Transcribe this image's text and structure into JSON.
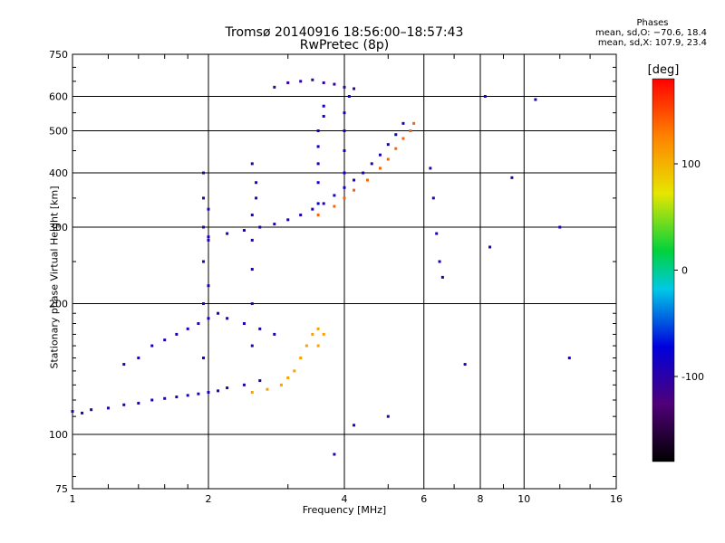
{
  "chart_data": {
    "type": "scatter",
    "title": "Tromsø 20140916 18:56:00–18:57:43",
    "subtitle": "RwPretec (8p)",
    "xlabel": "Frequency [MHz]",
    "ylabel": "Stationary phase Virtual Height [km]",
    "x_scale": "log",
    "y_scale": "log",
    "xlim": [
      1,
      16
    ],
    "ylim": [
      75,
      750
    ],
    "x_ticks": [
      1,
      2,
      4,
      6,
      8,
      10,
      16
    ],
    "y_ticks": [
      75,
      100,
      200,
      300,
      400,
      500,
      600,
      750
    ],
    "grid": true,
    "phase_info": {
      "title": "Phases",
      "line_o": "mean, sd,O: −70.6, 18.4",
      "line_x": "mean, sd,X: 107.9, 23.4"
    },
    "colorbar": {
      "label": "[deg]",
      "range": [
        -180,
        180
      ],
      "ticks": [
        100,
        0,
        -100
      ]
    },
    "series": [
      {
        "name": "",
        "description": "low F-layer trace",
        "points": [
          [
            1.0,
            113
          ],
          [
            1.05,
            112
          ],
          [
            1.1,
            114
          ],
          [
            1.2,
            115
          ],
          [
            1.3,
            117
          ],
          [
            1.4,
            118
          ],
          [
            1.5,
            120
          ],
          [
            1.6,
            121
          ],
          [
            1.7,
            122
          ],
          [
            1.8,
            123
          ],
          [
            1.9,
            124
          ],
          [
            2.0,
            125
          ],
          [
            2.1,
            126
          ],
          [
            2.2,
            128
          ],
          [
            2.4,
            130
          ],
          [
            2.6,
            133
          ]
        ],
        "phase": -95
      },
      {
        "name": "",
        "description": "lower band echoes",
        "points": [
          [
            1.3,
            145
          ],
          [
            1.4,
            150
          ],
          [
            1.5,
            160
          ],
          [
            1.6,
            165
          ],
          [
            1.7,
            170
          ],
          [
            1.8,
            175
          ],
          [
            1.9,
            180
          ],
          [
            2.0,
            185
          ],
          [
            2.1,
            190
          ],
          [
            2.2,
            185
          ],
          [
            2.4,
            180
          ],
          [
            2.6,
            175
          ],
          [
            2.8,
            170
          ]
        ],
        "phase": -90
      },
      {
        "name": "",
        "description": "vertical streak near 2 MHz",
        "points": [
          [
            1.95,
            150
          ],
          [
            1.95,
            200
          ],
          [
            1.95,
            250
          ],
          [
            1.95,
            300
          ],
          [
            1.95,
            350
          ],
          [
            1.95,
            400
          ],
          [
            2.0,
            220
          ],
          [
            2.0,
            280
          ],
          [
            2.0,
            330
          ]
        ],
        "phase": -100
      },
      {
        "name": "",
        "description": "vertical streak near 2.5 MHz",
        "points": [
          [
            2.5,
            160
          ],
          [
            2.5,
            200
          ],
          [
            2.5,
            240
          ],
          [
            2.5,
            280
          ],
          [
            2.5,
            320
          ],
          [
            2.55,
            350
          ],
          [
            2.55,
            380
          ],
          [
            2.5,
            420
          ]
        ],
        "phase": -95
      },
      {
        "name": "",
        "description": "F2 trace rising",
        "points": [
          [
            2.0,
            285
          ],
          [
            2.2,
            290
          ],
          [
            2.4,
            295
          ],
          [
            2.6,
            300
          ],
          [
            2.8,
            305
          ],
          [
            3.0,
            312
          ],
          [
            3.2,
            320
          ],
          [
            3.4,
            330
          ],
          [
            3.6,
            340
          ],
          [
            3.8,
            355
          ],
          [
            4.0,
            370
          ],
          [
            4.2,
            385
          ],
          [
            4.4,
            400
          ],
          [
            4.6,
            420
          ],
          [
            4.8,
            440
          ],
          [
            5.0,
            465
          ],
          [
            5.2,
            490
          ],
          [
            5.4,
            520
          ]
        ],
        "phase": -90
      },
      {
        "name": "",
        "description": "upper cusp 3.5-4.2 MHz",
        "points": [
          [
            3.5,
            340
          ],
          [
            3.5,
            380
          ],
          [
            3.5,
            420
          ],
          [
            3.5,
            460
          ],
          [
            3.5,
            500
          ],
          [
            3.6,
            540
          ],
          [
            3.6,
            570
          ],
          [
            4.0,
            400
          ],
          [
            4.0,
            450
          ],
          [
            4.0,
            500
          ],
          [
            4.0,
            550
          ],
          [
            4.1,
            600
          ]
        ],
        "phase": -80
      },
      {
        "name": "",
        "description": "top echoes",
        "points": [
          [
            2.8,
            630
          ],
          [
            3.0,
            645
          ],
          [
            3.2,
            650
          ],
          [
            3.4,
            655
          ],
          [
            3.6,
            645
          ],
          [
            3.8,
            640
          ],
          [
            4.0,
            630
          ],
          [
            4.2,
            625
          ]
        ],
        "phase": -105
      },
      {
        "name": "",
        "description": "X-mode trace low",
        "points": [
          [
            2.5,
            125
          ],
          [
            2.7,
            127
          ],
          [
            2.9,
            130
          ],
          [
            3.0,
            135
          ],
          [
            3.1,
            140
          ],
          [
            3.2,
            150
          ],
          [
            3.3,
            160
          ],
          [
            3.4,
            170
          ],
          [
            3.5,
            175
          ],
          [
            3.6,
            170
          ],
          [
            3.5,
            160
          ]
        ],
        "phase": 110
      },
      {
        "name": "",
        "description": "X-mode trace high",
        "points": [
          [
            3.5,
            320
          ],
          [
            3.8,
            335
          ],
          [
            4.0,
            350
          ],
          [
            4.2,
            365
          ],
          [
            4.5,
            385
          ],
          [
            4.8,
            410
          ],
          [
            5.0,
            430
          ],
          [
            5.2,
            455
          ],
          [
            5.4,
            480
          ],
          [
            5.6,
            500
          ],
          [
            5.7,
            520
          ]
        ],
        "phase": 140
      },
      {
        "name": "",
        "description": "sparse echoes",
        "points": [
          [
            6.2,
            410
          ],
          [
            6.3,
            350
          ],
          [
            6.4,
            290
          ],
          [
            6.5,
            250
          ],
          [
            6.6,
            230
          ],
          [
            7.4,
            145
          ],
          [
            8.2,
            600
          ],
          [
            8.4,
            270
          ],
          [
            9.4,
            390
          ],
          [
            10.6,
            590
          ],
          [
            12.0,
            300
          ],
          [
            12.6,
            150
          ],
          [
            4.2,
            105
          ],
          [
            5.0,
            110
          ],
          [
            3.8,
            90
          ]
        ],
        "phase": -95
      }
    ]
  }
}
